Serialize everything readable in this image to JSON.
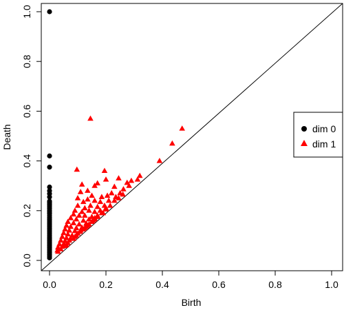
{
  "chart_data": {
    "type": "scatter",
    "title": "",
    "xlabel": "Birth",
    "ylabel": "Death",
    "xlim": [
      0,
      1
    ],
    "ylim": [
      0,
      1
    ],
    "x_ticks": [
      {
        "value": 0,
        "label": "0.0"
      },
      {
        "value": 0.2,
        "label": "0.2"
      },
      {
        "value": 0.4,
        "label": "0.4"
      },
      {
        "value": 0.6,
        "label": "0.6"
      },
      {
        "value": 0.8,
        "label": "0.8"
      },
      {
        "value": 1.0,
        "label": "1.0"
      }
    ],
    "y_ticks": [
      {
        "value": 0,
        "label": "0.0"
      },
      {
        "value": 0.2,
        "label": "0.2"
      },
      {
        "value": 0.4,
        "label": "0.4"
      },
      {
        "value": 0.6,
        "label": "0.6"
      },
      {
        "value": 0.8,
        "label": "0.8"
      },
      {
        "value": 1.0,
        "label": "1.0"
      }
    ],
    "diagonal": "y = x",
    "grid": false,
    "legend_position": "right",
    "series": [
      {
        "name": "dim 0",
        "marker": "circle",
        "color": "#000000",
        "points": [
          [
            0,
            1.0
          ],
          [
            0,
            0.42
          ],
          [
            0,
            0.375
          ],
          [
            0,
            0.295
          ],
          [
            0,
            0.28
          ],
          [
            0,
            0.268
          ],
          [
            0,
            0.255
          ],
          [
            0,
            0.238
          ],
          [
            0,
            0.232
          ],
          [
            0,
            0.225
          ],
          [
            0,
            0.218
          ],
          [
            0,
            0.21
          ],
          [
            0,
            0.202
          ],
          [
            0,
            0.195
          ],
          [
            0,
            0.188
          ],
          [
            0,
            0.18
          ],
          [
            0,
            0.172
          ],
          [
            0,
            0.165
          ],
          [
            0,
            0.158
          ],
          [
            0,
            0.15
          ],
          [
            0,
            0.143
          ],
          [
            0,
            0.136
          ],
          [
            0,
            0.129
          ],
          [
            0,
            0.122
          ],
          [
            0,
            0.115
          ],
          [
            0,
            0.108
          ],
          [
            0,
            0.101
          ],
          [
            0,
            0.094
          ],
          [
            0,
            0.087
          ],
          [
            0,
            0.08
          ],
          [
            0,
            0.073
          ],
          [
            0,
            0.066
          ],
          [
            0,
            0.059
          ],
          [
            0,
            0.052
          ],
          [
            0,
            0.045
          ],
          [
            0,
            0.038
          ],
          [
            0,
            0.031
          ],
          [
            0,
            0.024
          ],
          [
            0,
            0.017
          ],
          [
            0,
            0.01
          ]
        ]
      },
      {
        "name": "dim 1",
        "marker": "triangle",
        "color": "#ff0000",
        "points": [
          [
            0.145,
            0.57
          ],
          [
            0.47,
            0.53
          ],
          [
            0.435,
            0.47
          ],
          [
            0.39,
            0.4
          ],
          [
            0.195,
            0.36
          ],
          [
            0.097,
            0.365
          ],
          [
            0.245,
            0.33
          ],
          [
            0.2,
            0.325
          ],
          [
            0.29,
            0.32
          ],
          [
            0.275,
            0.312
          ],
          [
            0.32,
            0.34
          ],
          [
            0.312,
            0.325
          ],
          [
            0.282,
            0.3
          ],
          [
            0.262,
            0.286
          ],
          [
            0.23,
            0.296
          ],
          [
            0.17,
            0.31
          ],
          [
            0.115,
            0.305
          ],
          [
            0.22,
            0.27
          ],
          [
            0.25,
            0.27
          ],
          [
            0.16,
            0.3
          ],
          [
            0.135,
            0.28
          ],
          [
            0.11,
            0.275
          ],
          [
            0.205,
            0.26
          ],
          [
            0.185,
            0.255
          ],
          [
            0.15,
            0.26
          ],
          [
            0.235,
            0.255
          ],
          [
            0.21,
            0.24
          ],
          [
            0.18,
            0.235
          ],
          [
            0.16,
            0.24
          ],
          [
            0.135,
            0.245
          ],
          [
            0.1,
            0.25
          ],
          [
            0.12,
            0.235
          ],
          [
            0.195,
            0.22
          ],
          [
            0.17,
            0.215
          ],
          [
            0.145,
            0.22
          ],
          [
            0.125,
            0.21
          ],
          [
            0.1,
            0.22
          ],
          [
            0.09,
            0.2
          ],
          [
            0.115,
            0.195
          ],
          [
            0.14,
            0.2
          ],
          [
            0.16,
            0.195
          ],
          [
            0.18,
            0.2
          ],
          [
            0.2,
            0.205
          ],
          [
            0.085,
            0.185
          ],
          [
            0.105,
            0.18
          ],
          [
            0.125,
            0.18
          ],
          [
            0.15,
            0.175
          ],
          [
            0.17,
            0.18
          ],
          [
            0.19,
            0.19
          ],
          [
            0.075,
            0.17
          ],
          [
            0.095,
            0.165
          ],
          [
            0.12,
            0.16
          ],
          [
            0.14,
            0.165
          ],
          [
            0.16,
            0.17
          ],
          [
            0.065,
            0.155
          ],
          [
            0.085,
            0.15
          ],
          [
            0.105,
            0.145
          ],
          [
            0.13,
            0.148
          ],
          [
            0.15,
            0.155
          ],
          [
            0.06,
            0.14
          ],
          [
            0.075,
            0.135
          ],
          [
            0.095,
            0.13
          ],
          [
            0.115,
            0.132
          ],
          [
            0.135,
            0.14
          ],
          [
            0.055,
            0.125
          ],
          [
            0.07,
            0.12
          ],
          [
            0.09,
            0.118
          ],
          [
            0.11,
            0.12
          ],
          [
            0.125,
            0.13
          ],
          [
            0.05,
            0.11
          ],
          [
            0.065,
            0.105
          ],
          [
            0.08,
            0.1
          ],
          [
            0.1,
            0.108
          ],
          [
            0.045,
            0.095
          ],
          [
            0.06,
            0.09
          ],
          [
            0.075,
            0.088
          ],
          [
            0.09,
            0.095
          ],
          [
            0.04,
            0.08
          ],
          [
            0.055,
            0.078
          ],
          [
            0.07,
            0.08
          ],
          [
            0.085,
            0.087
          ],
          [
            0.035,
            0.065
          ],
          [
            0.05,
            0.065
          ],
          [
            0.065,
            0.07
          ],
          [
            0.03,
            0.052
          ],
          [
            0.045,
            0.055
          ],
          [
            0.06,
            0.062
          ],
          [
            0.028,
            0.04
          ],
          [
            0.04,
            0.045
          ],
          [
            0.055,
            0.058
          ],
          [
            0.03,
            0.035
          ],
          [
            0.108,
            0.115
          ],
          [
            0.12,
            0.125
          ],
          [
            0.14,
            0.145
          ],
          [
            0.155,
            0.16
          ],
          [
            0.17,
            0.175
          ],
          [
            0.185,
            0.19
          ],
          [
            0.2,
            0.21
          ],
          [
            0.215,
            0.22
          ],
          [
            0.23,
            0.24
          ],
          [
            0.245,
            0.25
          ],
          [
            0.26,
            0.265
          ],
          [
            0.16,
            0.165
          ],
          [
            0.13,
            0.135
          ],
          [
            0.095,
            0.1
          ]
        ]
      }
    ]
  }
}
